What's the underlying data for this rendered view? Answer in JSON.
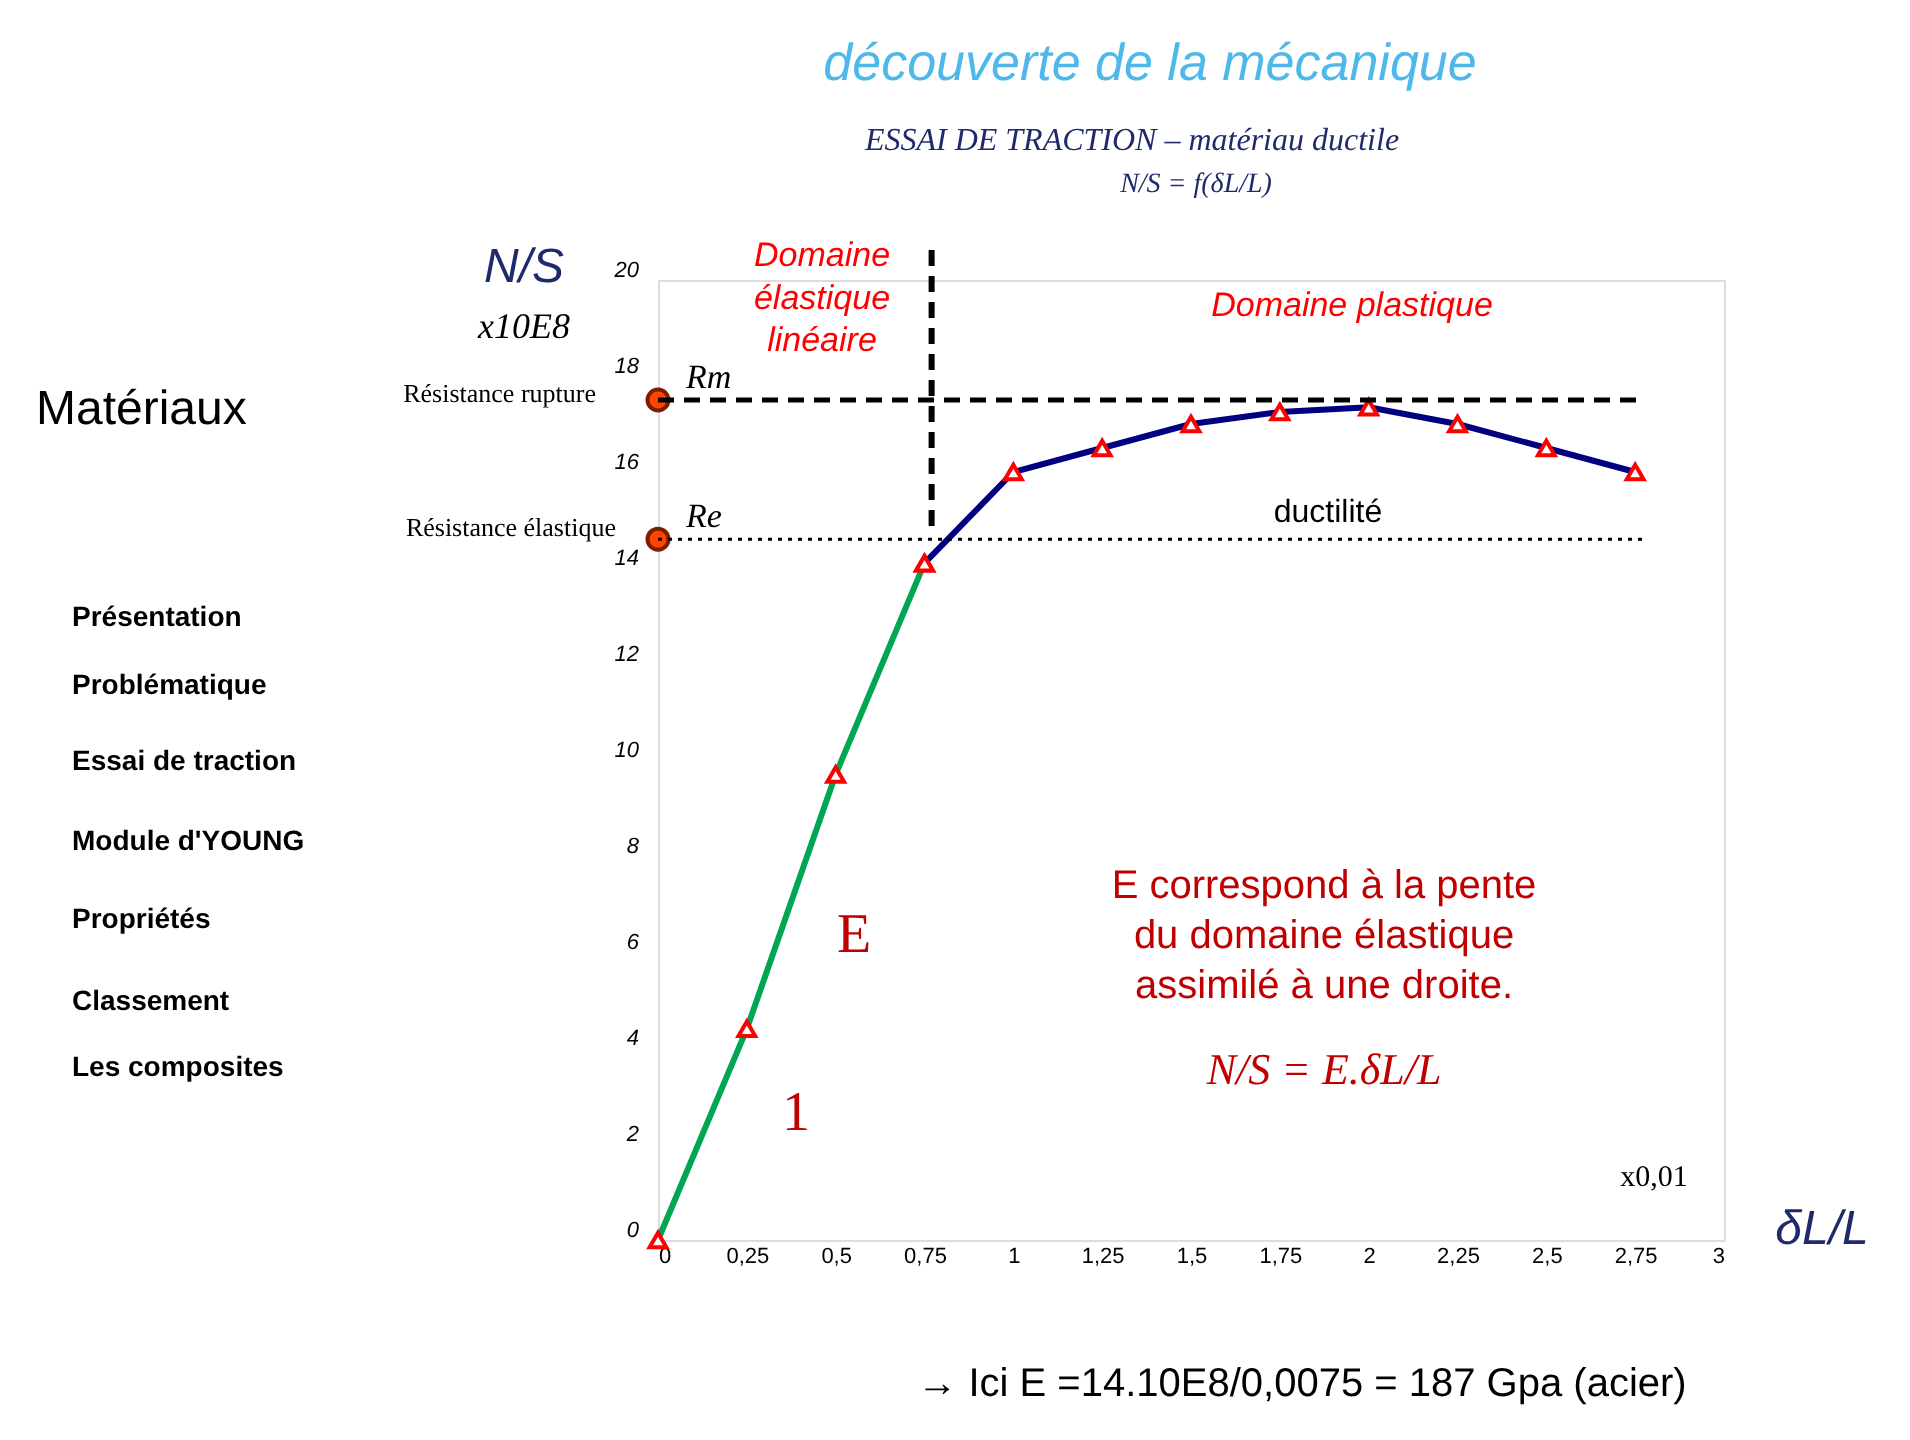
{
  "chart_data": {
    "type": "line",
    "title": "découverte de la mécanique",
    "subtitle": "ESSAI DE TRACTION – matériau ductile",
    "ylabel": "N/S",
    "xlabel": "δL/L",
    "x": [
      0,
      0.25,
      0.5,
      0.75
    ],
    "series": [
      {
        "color": "#00a651",
        "values": [
          0,
          4.4,
          9.7,
          14.1
        ],
        "marker": "triangle"
      },
      {
        "color": "#000080",
        "x": [
          0.75,
          1,
          1.25,
          1.5,
          1.75,
          2,
          2.25,
          2.5,
          2.75
        ],
        "values": [
          14.1,
          16,
          16.5,
          17,
          17.25,
          17.35,
          17,
          16.5,
          16
        ],
        "marker": "triangle"
      },
      {
        "type": "scatter",
        "color": "#ff4500",
        "x": [
          0,
          0
        ],
        "values": [
          17.5,
          14.6
        ],
        "marker": "circle"
      }
    ],
    "xlim": [
      0,
      3
    ],
    "ylim": [
      0,
      20
    ],
    "xticks": [
      0,
      {
        "value": 0.25,
        "label": "0,25"
      },
      {
        "value": 0.5,
        "label": "0,5"
      },
      {
        "value": 0.75,
        "label": "0,75"
      },
      1,
      {
        "value": 1.25,
        "label": "1,25"
      },
      {
        "value": 1.5,
        "label": "1,5"
      },
      {
        "value": 1.75,
        "label": "1,75"
      },
      2,
      {
        "value": 2.25,
        "label": "2,25"
      },
      {
        "value": 2.5,
        "label": "2,5"
      },
      {
        "value": 2.75,
        "label": "2,75"
      },
      3
    ],
    "yticks": [
      0,
      2,
      4,
      6,
      8,
      10,
      12,
      14,
      16,
      18,
      20
    ],
    "ref_lines": [
      {
        "axis": "y",
        "value": 17.5,
        "label": "Rm",
        "color": "#000000",
        "line_style": "dashed"
      },
      {
        "axis": "y",
        "value": 14.6,
        "label": "Re",
        "color": "#000000",
        "line_style": "dotted"
      },
      {
        "axis": "x",
        "value": 0.77,
        "color": "#000000",
        "line_style": "dashed"
      }
    ],
    "annotations": [
      "N/S = f(δL/L)",
      "x10E8",
      "Domaine élastique linéaire",
      "Domaine plastique",
      "Résistance rupture",
      "Résistance élastique",
      "ductilité",
      "E",
      "1",
      "E correspond à la pente du domaine élastique assimilé à une droite.",
      "N/S = E.δL/L",
      "x0,01",
      "→ Ici E =14.10E8/0,0075 = 187 Gpa (acier)",
      "Matériaux",
      "Présentation",
      "Problématique",
      "Essai de traction",
      "Module d'YOUNG",
      "Propriétés",
      "Classement",
      "Les composites"
    ],
    "grid": false
  }
}
